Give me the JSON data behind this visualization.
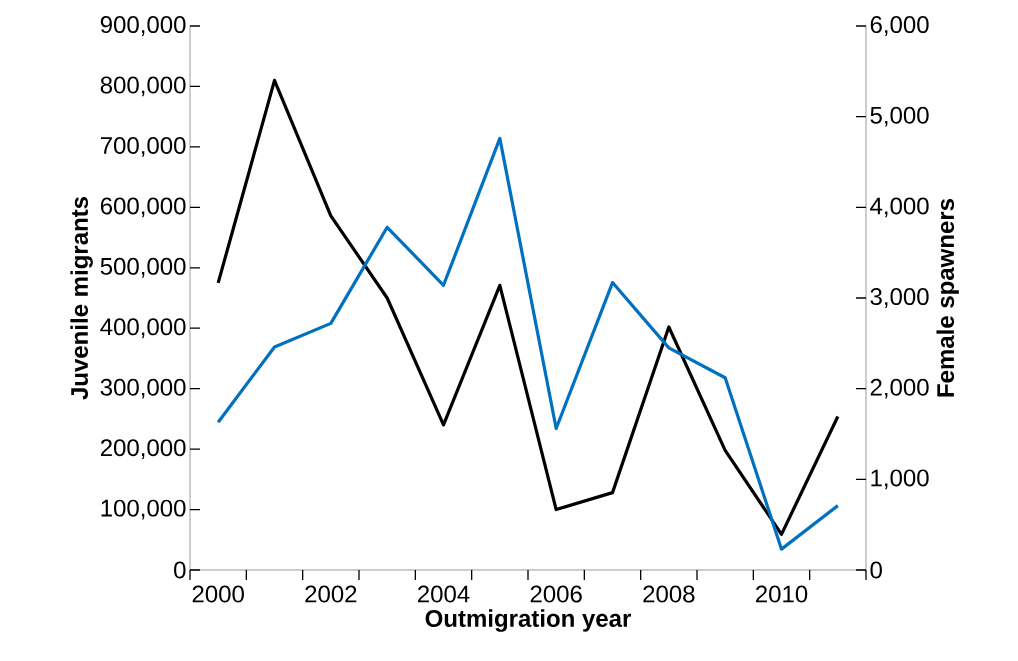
{
  "chart_data": {
    "type": "line",
    "xlabel": "Outmigration year",
    "ylabel": "Juvenile migrants",
    "y2label": "Female spawners",
    "categories": [
      "2000",
      null,
      "2002",
      null,
      "2004",
      null,
      "2006",
      null,
      "2008",
      null,
      "2010",
      null
    ],
    "series": [
      {
        "color": "#000000",
        "values": [
          475000,
          810000,
          586000,
          450000,
          240000,
          471000,
          100000,
          128000,
          402000,
          198000,
          59000,
          254000
        ]
      },
      {
        "color": "#0070c0",
        "axis": "y2",
        "values": [
          1630,
          2460,
          2720,
          3780,
          3140,
          4760,
          1560,
          3170,
          2450,
          2120,
          230,
          710
        ]
      }
    ],
    "ylim": [
      0,
      900000
    ],
    "yticks": [
      0,
      {
        "value": 100000,
        "label": "100,000"
      },
      {
        "value": 200000,
        "label": "200,000"
      },
      {
        "value": 300000,
        "label": "300,000"
      },
      {
        "value": 400000,
        "label": "400,000"
      },
      {
        "value": 500000,
        "label": "500,000"
      },
      {
        "value": 600000,
        "label": "600,000"
      },
      {
        "value": 700000,
        "label": "700,000"
      },
      {
        "value": 800000,
        "label": "800,000"
      },
      {
        "value": 900000,
        "label": "900,000"
      }
    ],
    "y2lim": [
      0,
      6000
    ],
    "y2ticks": [
      0,
      {
        "value": 1000,
        "label": "1,000"
      },
      {
        "value": 2000,
        "label": "2,000"
      },
      {
        "value": 3000,
        "label": "3,000"
      },
      {
        "value": 4000,
        "label": "4,000"
      },
      {
        "value": 5000,
        "label": "5,000"
      },
      {
        "value": 6000,
        "label": "6,000"
      }
    ]
  }
}
